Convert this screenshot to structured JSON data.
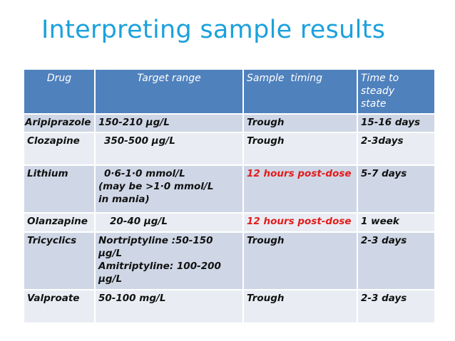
{
  "title": "Interpreting sample results",
  "table": {
    "headers": [
      "Drug",
      "Target range",
      "Sample  timing",
      "Time to steady state"
    ],
    "rows": [
      {
        "drug": "Aripiprazole",
        "range": [
          "150-210 µg/L"
        ],
        "timing": "Trough",
        "timing_highlight": false,
        "steady": "15-16 days"
      },
      {
        "drug": "Clozapine",
        "range": [
          "350-500 µg/L"
        ],
        "timing": "Trough",
        "timing_highlight": false,
        "steady": "2-3days"
      },
      {
        "drug": "Lithium",
        "range": [
          "0·6-1·0 mmol/L",
          "(may be >1·0 mmol/L in mania)"
        ],
        "timing": "12 hours post-dose",
        "timing_highlight": true,
        "steady": "5-7 days"
      },
      {
        "drug": "Olanzapine",
        "range": [
          "20-40 µg/L"
        ],
        "timing": "12 hours post-dose",
        "timing_highlight": true,
        "steady": "1 week"
      },
      {
        "drug": "Tricyclics",
        "range": [
          "Nortriptyline :50-150 µg/L",
          "Amitriptyline: 100-200 µg/L"
        ],
        "timing": "Trough",
        "timing_highlight": false,
        "steady": "2-3 days"
      },
      {
        "drug": "Valproate",
        "range": [
          "50-100 mg/L"
        ],
        "timing": "Trough",
        "timing_highlight": false,
        "steady": "2-3 days"
      }
    ]
  },
  "colors": {
    "title": "#1ba1dc",
    "header_bg": "#4f81bd",
    "row_dark": "#cfd7e6",
    "row_light": "#e9edf3",
    "highlight": "#e31b1b"
  }
}
